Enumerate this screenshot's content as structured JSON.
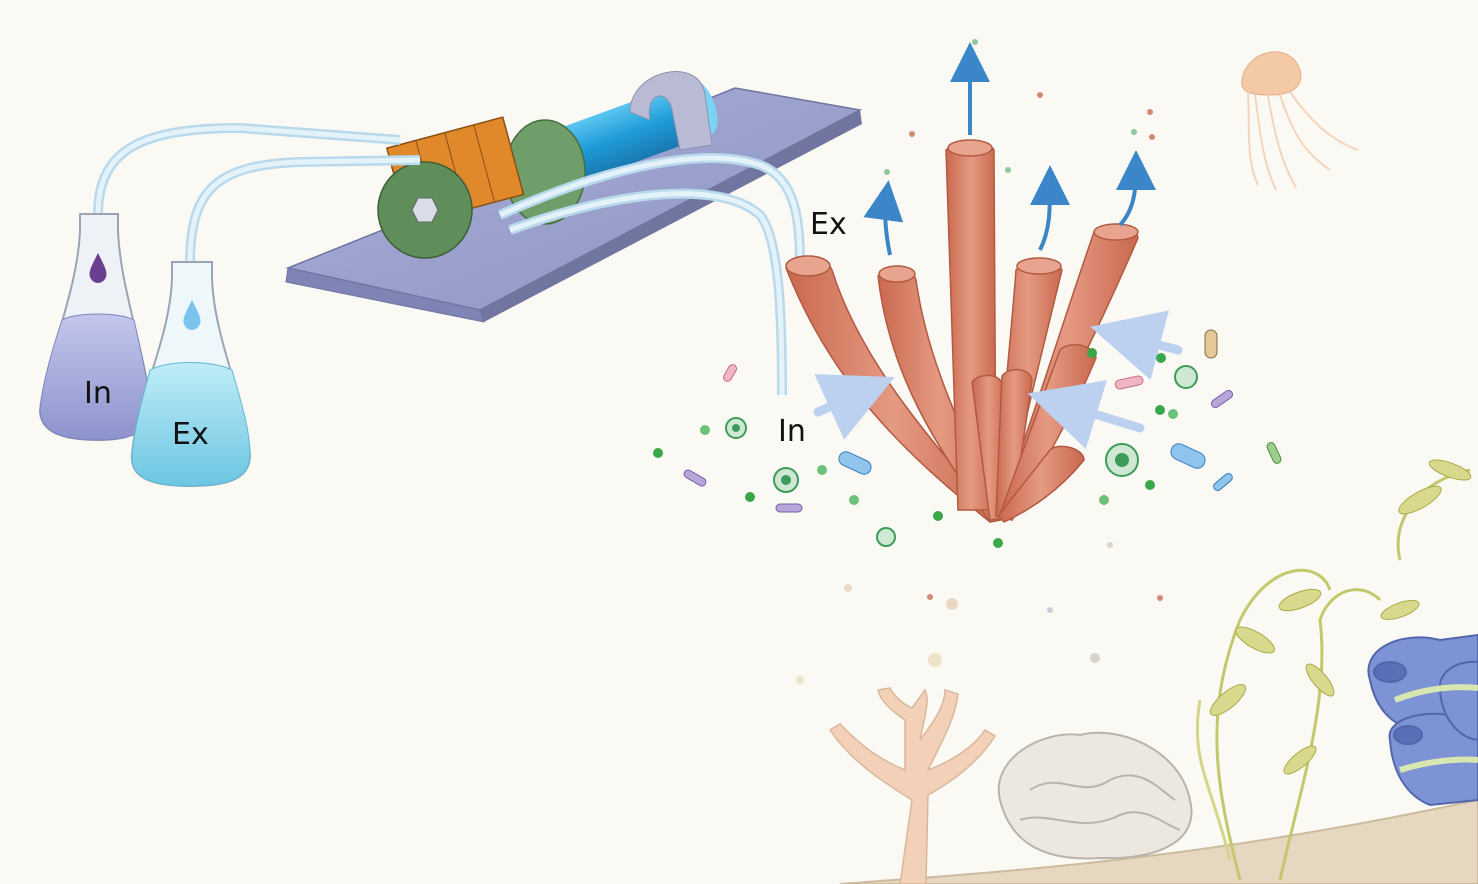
{
  "labels": {
    "flask_in": "In",
    "flask_ex": "Ex",
    "tube_in": "In",
    "tube_ex": "Ex"
  },
  "colors": {
    "background": "#fbf9f4",
    "sponge": "#d9826a",
    "flask_in_liquid": "#aeb4e0",
    "flask_ex_liquid": "#9ad8ec",
    "flow_arrow_out": "#3a86c8",
    "flow_arrow_in": "#bcd0f0",
    "tubing": "#cfe6f2",
    "pump_housing": "#d98a2a",
    "pump_cylinder": "#2aa7e0",
    "pump_plate": "#9aa0c8"
  },
  "icons": [
    "flask-icon",
    "drop-icon",
    "peristaltic-pump-icon",
    "sponge-icon",
    "jellyfish-icon",
    "coral-icon",
    "kelp-icon",
    "tunicate-icon",
    "bacteria-icon",
    "diatom-icon"
  ]
}
